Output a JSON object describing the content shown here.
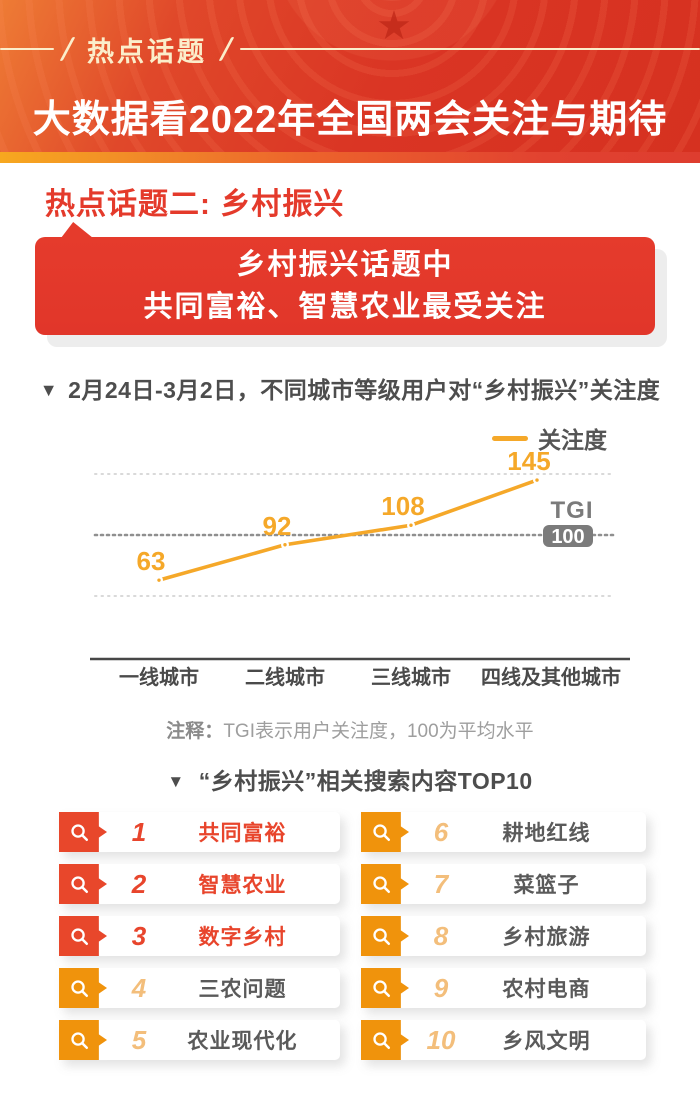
{
  "header": {
    "badge": "热点话题",
    "title": "大数据看2022年全国两会关注与期待"
  },
  "section": {
    "title": "热点话题二: 乡村振兴",
    "banner_line1": "乡村振兴话题中",
    "banner_line2": "共同富裕、智慧农业最受关注"
  },
  "chart": {
    "marker": "▼",
    "heading": "2月24日-3月2日，不同城市等级用户对“乡村振兴”关注度",
    "legend_label": "关注度",
    "tgi_label": "TGI",
    "tgi_badge": "100",
    "note_label": "注释：",
    "note_text": "TGI表示用户关注度，100为平均水平"
  },
  "chart_data": {
    "type": "line",
    "title": "不同城市等级用户对“乡村振兴”关注度",
    "categories": [
      "一线城市",
      "二线城市",
      "三线城市",
      "四线及其他城市"
    ],
    "series": [
      {
        "name": "关注度",
        "values": [
          63,
          92,
          108,
          145
        ]
      }
    ],
    "baseline": {
      "label": "TGI",
      "value": 100
    },
    "gridlines": [
      50,
      100,
      150
    ],
    "ylim": [
      40,
      160
    ],
    "legend_position": "top-right",
    "grid": true,
    "line_color": "#F5A829"
  },
  "top10": {
    "marker": "▼",
    "heading": "“乡村振兴”相关搜索内容TOP10",
    "items": [
      {
        "rank": "1",
        "label": "共同富裕",
        "highlight": true
      },
      {
        "rank": "2",
        "label": "智慧农业",
        "highlight": true
      },
      {
        "rank": "3",
        "label": "数字乡村",
        "highlight": true
      },
      {
        "rank": "4",
        "label": "三农问题",
        "highlight": false
      },
      {
        "rank": "5",
        "label": "农业现代化",
        "highlight": false
      },
      {
        "rank": "6",
        "label": "耕地红线",
        "highlight": false
      },
      {
        "rank": "7",
        "label": "菜篮子",
        "highlight": false
      },
      {
        "rank": "8",
        "label": "乡村旅游",
        "highlight": false
      },
      {
        "rank": "9",
        "label": "农村电商",
        "highlight": false
      },
      {
        "rank": "10",
        "label": "乡风文明",
        "highlight": false
      }
    ]
  },
  "colors": {
    "brand_red": "#E43A2B",
    "line_orange": "#F5A829",
    "badge_red": "#E8472B",
    "badge_orange": "#F0930C",
    "rank_muted": "#F3BE7B",
    "text_dark": "#4D4D4D",
    "text_gray": "#9E9E9E",
    "tgi_gray": "#7B7B7B",
    "grid_light": "#D9D9D9",
    "grid_dark": "#8F8F8F"
  }
}
